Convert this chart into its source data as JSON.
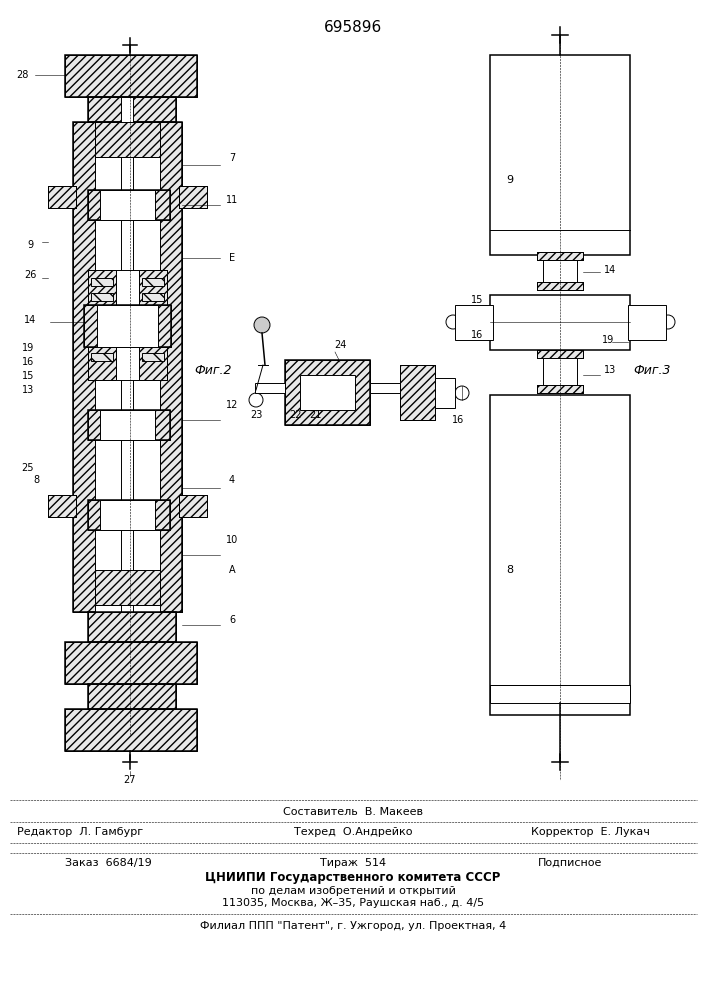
{
  "patent_number": "695896",
  "bg_color": "#ffffff",
  "footer_texts": {
    "composer": "Составитель  В. Макеев",
    "editor_label": "Редактор  Л. Гамбург",
    "techred_label": "Техред  О.Андрейко",
    "corrector_label": "Корректор  Е. Лукач",
    "order": "Заказ  6684/19",
    "tirazh": "Тираж  514",
    "podpisnoe": "Подписное",
    "cniip1": "ЦНИИПИ Государственного комитета СССР",
    "cniip2": "по делам изобретений и открытий",
    "cniip3": "113035, Москва, Ж–35, Раушская наб., д. 4/5",
    "filial": "Филиал ППП \"Патент\", г. Ужгород, ул. Проектная, 4"
  },
  "fig2_label": "Фиг.2",
  "fig3_label": "Фиг.3"
}
